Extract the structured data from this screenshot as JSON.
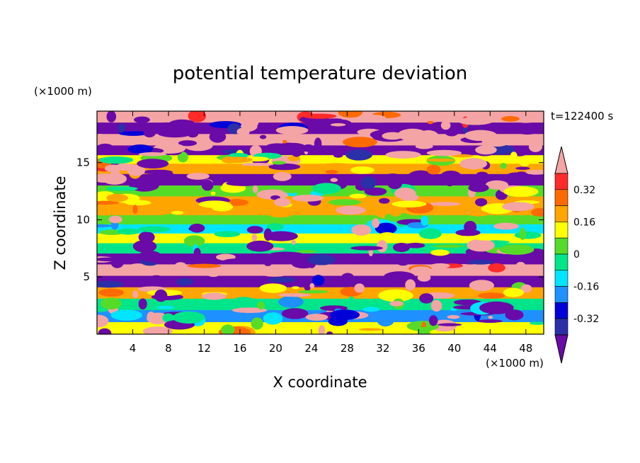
{
  "chart_data": {
    "type": "heatmap",
    "title": "potential temperature deviation",
    "xlabel": "X coordinate",
    "ylabel": "Z coordinate",
    "x_unit": "(×1000 m)",
    "y_unit": "(×1000 m)",
    "time_label": "t=122400 s",
    "xlim": [
      0,
      50
    ],
    "ylim": [
      0,
      19.5
    ],
    "x_ticks": [
      4,
      8,
      12,
      16,
      20,
      24,
      28,
      32,
      36,
      40,
      44,
      48
    ],
    "y_ticks": [
      5,
      10,
      15
    ],
    "colorbar": {
      "levels": [
        -0.4,
        -0.32,
        -0.24,
        -0.16,
        -0.08,
        0,
        0.08,
        0.16,
        0.24,
        0.32,
        0.4
      ],
      "tick_labels": [
        "-0.32",
        "-0.16",
        "0",
        "0.16",
        "0.32"
      ],
      "tick_values": [
        -0.32,
        -0.16,
        0,
        0.16,
        0.32
      ],
      "colors": [
        "#6a0aa8",
        "#2b2fa8",
        "#0000d8",
        "#1e90ff",
        "#00e5ff",
        "#00e58a",
        "#56dc28",
        "#ffff00",
        "#ffa500",
        "#ff6a00",
        "#ff2a2a",
        "#f4a4a4"
      ],
      "extend": "both"
    },
    "description_rows": [
      {
        "z": 19.0,
        "value": 0.42
      },
      {
        "z": 18.0,
        "value": -0.45
      },
      {
        "z": 17.0,
        "value": 0.4
      },
      {
        "z": 16.0,
        "value": -0.45
      },
      {
        "z": 15.3,
        "value": 0.1
      },
      {
        "z": 14.5,
        "value": 0.2
      },
      {
        "z": 13.5,
        "value": -0.42
      },
      {
        "z": 12.5,
        "value": 0.0
      },
      {
        "z": 11.6,
        "value": 0.16
      },
      {
        "z": 10.8,
        "value": 0.22
      },
      {
        "z": 10.0,
        "value": 0.02
      },
      {
        "z": 9.2,
        "value": -0.12
      },
      {
        "z": 8.4,
        "value": 0.08
      },
      {
        "z": 7.5,
        "value": -0.02
      },
      {
        "z": 6.6,
        "value": -0.45
      },
      {
        "z": 5.6,
        "value": 0.42
      },
      {
        "z": 4.6,
        "value": -0.45
      },
      {
        "z": 3.6,
        "value": 0.16
      },
      {
        "z": 2.6,
        "value": -0.08
      },
      {
        "z": 1.6,
        "value": -0.18
      },
      {
        "z": 0.5,
        "value": 0.12
      }
    ]
  }
}
